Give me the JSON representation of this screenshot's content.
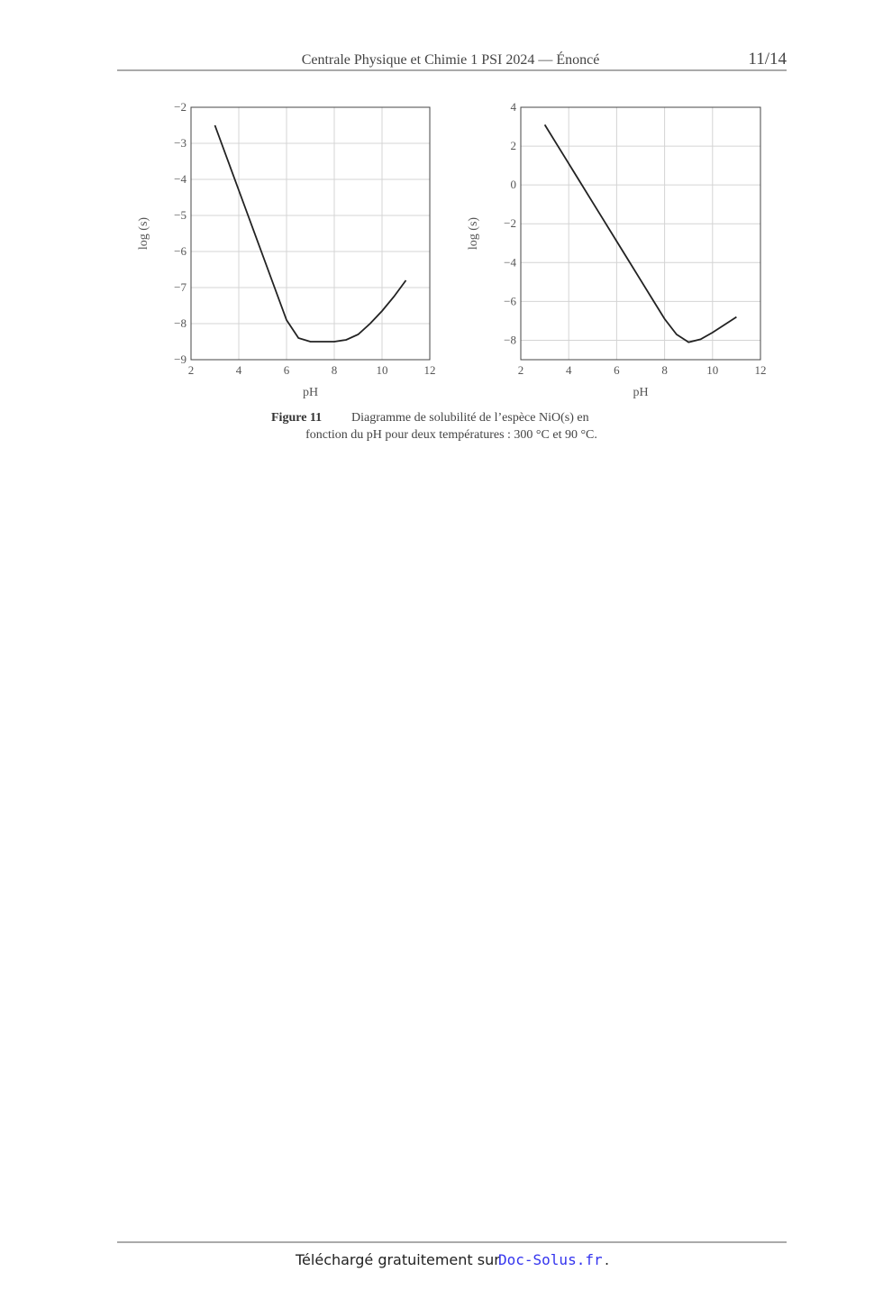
{
  "header": {
    "title": "Centrale Physique et Chimie 1 PSI 2024 — Énoncé",
    "page": "11/14"
  },
  "chart_data": [
    {
      "type": "line",
      "xlabel": "pH",
      "ylabel": "log (s)",
      "x": [
        3,
        3.5,
        4,
        4.5,
        5,
        5.5,
        6,
        6.5,
        7,
        7.5,
        8,
        8.5,
        9,
        9.5,
        10,
        10.5,
        11
      ],
      "series": [
        {
          "color": "#222222",
          "values": [
            -2.5,
            -3.4,
            -4.3,
            -5.2,
            -6.1,
            -7.0,
            -7.9,
            -8.4,
            -8.5,
            -8.5,
            -8.5,
            -8.45,
            -8.3,
            -8.0,
            -7.65,
            -7.25,
            -6.8
          ]
        }
      ],
      "xlim": [
        2,
        12
      ],
      "xticks": [
        2,
        4,
        6,
        8,
        10,
        12
      ],
      "ylim": [
        -9,
        -2
      ],
      "yticks": [
        {
          "value": -9,
          "label": "−9"
        },
        {
          "value": -8,
          "label": "−8"
        },
        {
          "value": -7,
          "label": "−7"
        },
        {
          "value": -6,
          "label": "−6"
        },
        {
          "value": -5,
          "label": "−5"
        },
        {
          "value": -4,
          "label": "−4"
        },
        {
          "value": -3,
          "label": "−3"
        },
        {
          "value": -2,
          "label": "−2"
        }
      ],
      "grid": true
    },
    {
      "type": "line",
      "xlabel": "pH",
      "ylabel": "log (s)",
      "x": [
        3,
        3.5,
        4,
        4.5,
        5,
        5.5,
        6,
        6.5,
        7,
        7.5,
        8,
        8.5,
        9,
        9.5,
        10,
        10.5,
        11
      ],
      "series": [
        {
          "color": "#222222",
          "values": [
            3.1,
            2.1,
            1.1,
            0.1,
            -0.9,
            -1.9,
            -2.9,
            -3.9,
            -4.9,
            -5.9,
            -6.9,
            -7.7,
            -8.1,
            -7.95,
            -7.6,
            -7.2,
            -6.8
          ]
        }
      ],
      "xlim": [
        2,
        12
      ],
      "xticks": [
        2,
        4,
        6,
        8,
        10,
        12
      ],
      "ylim": [
        -9,
        4
      ],
      "yticks": [
        {
          "value": -8,
          "label": "−8"
        },
        {
          "value": -6,
          "label": "−6"
        },
        {
          "value": -4,
          "label": "−4"
        },
        {
          "value": -2,
          "label": "−2"
        },
        0,
        2,
        4
      ],
      "grid": true
    }
  ],
  "caption": {
    "label": "Figure 11",
    "line1": "Diagramme de solubilité de l’espèce NiO(s) en",
    "line2": "fonction du pH pour deux températures : 300 °C et 90 °C."
  },
  "footer": {
    "text": "Téléchargé gratuitement sur",
    "link": "Doc-Solus.fr",
    "end": "."
  }
}
